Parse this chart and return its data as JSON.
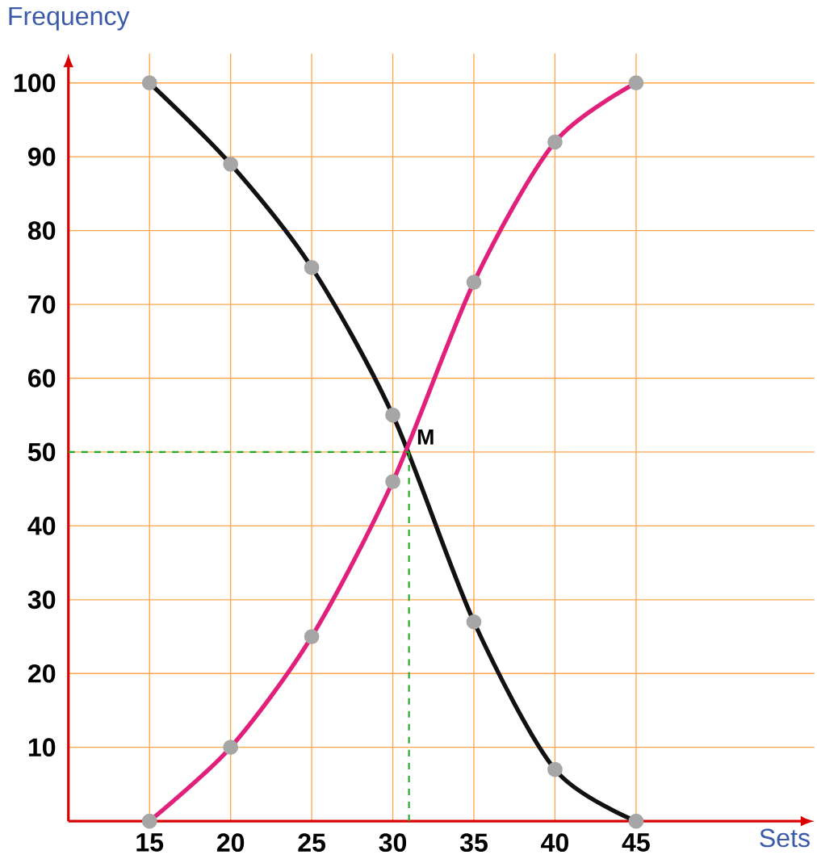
{
  "chart_data": {
    "type": "line",
    "xlabel": "Sets",
    "ylabel": "Frequency",
    "xlim": [
      10,
      56
    ],
    "ylim": [
      0,
      104
    ],
    "xticks": [
      15,
      20,
      25,
      30,
      35,
      40,
      45
    ],
    "yticks": [
      10,
      20,
      30,
      40,
      50,
      60,
      70,
      80,
      90,
      100
    ],
    "grid": true,
    "marker": "circle",
    "series": [
      {
        "color": "#111111",
        "x": [
          15,
          20,
          25,
          30,
          35,
          40,
          45
        ],
        "values": [
          100,
          89,
          75,
          55,
          27,
          7,
          0
        ]
      },
      {
        "color": "#e0207a",
        "x": [
          15,
          20,
          25,
          30,
          35,
          40,
          45
        ],
        "values": [
          0,
          10,
          25,
          46,
          73,
          92,
          100
        ]
      },
      {
        "color": "#22aa22",
        "x": [
          10,
          31
        ],
        "values": [
          50,
          50
        ],
        "line_style": "dashed",
        "marker": "none"
      },
      {
        "color": "#22aa22",
        "x": [
          31,
          31
        ],
        "values": [
          0,
          50
        ],
        "line_style": "dashed",
        "marker": "none"
      }
    ],
    "annotations": [
      {
        "text": "M",
        "x": 31,
        "y": 50
      }
    ]
  }
}
